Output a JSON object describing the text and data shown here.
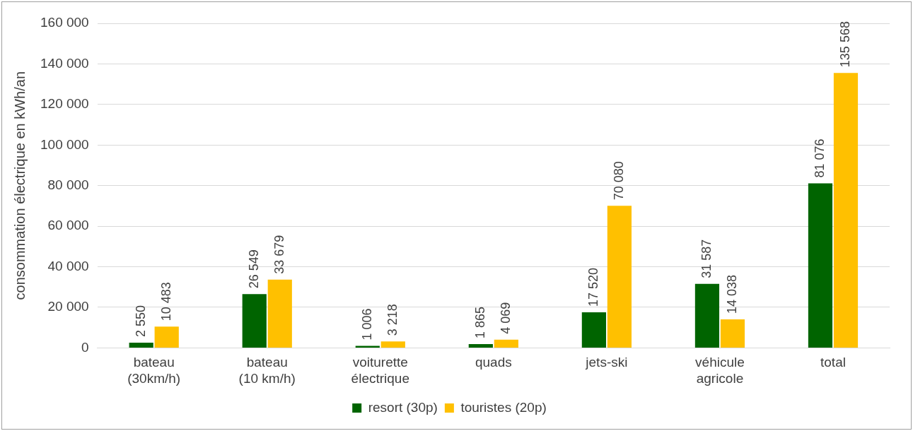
{
  "chart_data": {
    "type": "bar",
    "ylabel": "consommation électrique en kWh/an",
    "categories": [
      "bateau (30km/h)",
      "bateau (10 km/h)",
      "voiturette électrique",
      "quads",
      "jets-ski",
      "véhicule agricole",
      "total"
    ],
    "series": [
      {
        "name": "resort (30p)",
        "color": "#006400",
        "values": [
          2550,
          26549,
          1006,
          1865,
          17520,
          31587,
          81076
        ],
        "value_labels": [
          "2 550",
          "26 549",
          "1 006",
          "1 865",
          "17 520",
          "31 587",
          "81 076"
        ]
      },
      {
        "name": "touristes (20p)",
        "color": "#ffc000",
        "values": [
          10483,
          33679,
          3218,
          4069,
          70080,
          14038,
          135568
        ],
        "value_labels": [
          "10 483",
          "33 679",
          "3 218",
          "4 069",
          "70 080",
          "14 038",
          "135 568"
        ]
      }
    ],
    "ylim": [
      0,
      160000
    ],
    "yticks": [
      {
        "value": 0,
        "label": "0"
      },
      {
        "value": 20000,
        "label": "20 000"
      },
      {
        "value": 40000,
        "label": "40 000"
      },
      {
        "value": 60000,
        "label": "60 000"
      },
      {
        "value": 80000,
        "label": "80 000"
      },
      {
        "value": 100000,
        "label": "100 000"
      },
      {
        "value": 120000,
        "label": "120 000"
      },
      {
        "value": 140000,
        "label": "140 000"
      },
      {
        "value": 160000,
        "label": "160 000"
      }
    ],
    "grid": "y",
    "legend": "bottom"
  }
}
